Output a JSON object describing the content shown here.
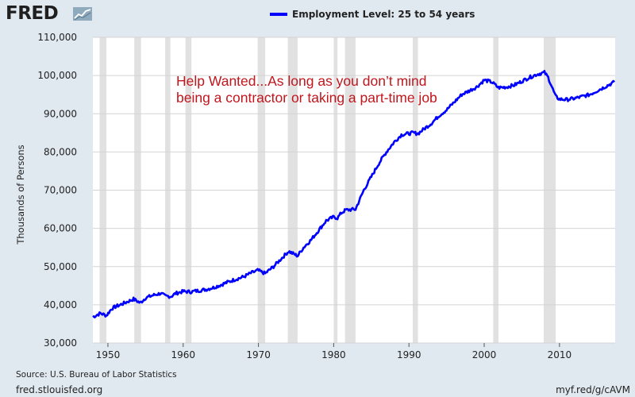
{
  "header": {
    "brand": "FRED",
    "brand_icon": "line-graph-icon"
  },
  "footer": {
    "source": "Source: U.S. Bureau of Labor Statistics",
    "site": "fred.stlouisfed.org",
    "shorturl": "myf.red/g/cAVM"
  },
  "colors": {
    "series": "#0000ff",
    "annotation": "#c0161c",
    "recession": "#e1e1e1",
    "background": "#e1e9f0"
  },
  "chart_data": {
    "type": "line",
    "title": "",
    "xlabel": "",
    "ylabel": "Thousands of Persons",
    "xlim": [
      1948,
      2017.4
    ],
    "ylim": [
      30000,
      110000
    ],
    "x_ticks": [
      1950,
      1960,
      1970,
      1980,
      1990,
      2000,
      2010
    ],
    "y_ticks": [
      30000,
      40000,
      50000,
      60000,
      70000,
      80000,
      90000,
      100000,
      110000
    ],
    "y_tick_labels": [
      "30,000",
      "40,000",
      "50,000",
      "60,000",
      "70,000",
      "80,000",
      "90,000",
      "100,000",
      "110,000"
    ],
    "grid": "horizontal",
    "legend": "top-center",
    "annotation": [
      "Help Wanted...As long as you don’t mind",
      "being a contractor or taking a part-time job"
    ],
    "recessions": [
      [
        1948.9,
        1949.8
      ],
      [
        1953.5,
        1954.4
      ],
      [
        1957.6,
        1958.3
      ],
      [
        1960.3,
        1961.1
      ],
      [
        1969.9,
        1970.9
      ],
      [
        1973.9,
        1975.2
      ],
      [
        1980.0,
        1980.5
      ],
      [
        1981.5,
        1982.9
      ],
      [
        1990.5,
        1991.2
      ],
      [
        2001.2,
        2001.9
      ],
      [
        2007.9,
        2009.5
      ]
    ],
    "series": [
      {
        "name": "Employment Level: 25 to 54 years",
        "x": [
          1948,
          1949,
          1949.8,
          1950.5,
          1951,
          1952,
          1953.4,
          1954.3,
          1955,
          1956,
          1957,
          1957.6,
          1958.4,
          1959,
          1960,
          1961,
          1962,
          1963,
          1964,
          1965,
          1966,
          1967,
          1968,
          1969,
          1969.9,
          1970.9,
          1972,
          1973,
          1974,
          1975.2,
          1976,
          1977,
          1978,
          1979,
          1980,
          1980.5,
          1981,
          1981.6,
          1982.9,
          1984,
          1985,
          1986,
          1987,
          1988,
          1989,
          1990.5,
          1991.2,
          1992,
          1993,
          1994,
          1995,
          1996,
          1997,
          1998,
          1999,
          2000,
          2001,
          2001.9,
          2003,
          2004,
          2005,
          2006,
          2007,
          2008,
          2008.5,
          2009,
          2009.5,
          2010,
          2011,
          2012,
          2013,
          2014,
          2015,
          2016,
          2017.3
        ],
        "values": [
          36800,
          37800,
          37200,
          39000,
          39500,
          40300,
          41500,
          40500,
          41800,
          42500,
          43000,
          42300,
          42200,
          43000,
          43500,
          43400,
          43700,
          44000,
          44500,
          45200,
          46000,
          46700,
          47300,
          48300,
          49000,
          48200,
          50000,
          52000,
          54000,
          52800,
          55000,
          57000,
          59500,
          62000,
          63000,
          62700,
          64000,
          64800,
          65000,
          70000,
          73500,
          77000,
          80000,
          82500,
          84500,
          85000,
          84800,
          86000,
          87500,
          89500,
          91000,
          93000,
          95000,
          96000,
          97000,
          98800,
          98300,
          96800,
          97000,
          97500,
          98500,
          99500,
          100300,
          100800,
          99500,
          97000,
          94500,
          93800,
          93700,
          94000,
          94500,
          95000,
          96000,
          97000,
          98300
        ]
      }
    ]
  }
}
